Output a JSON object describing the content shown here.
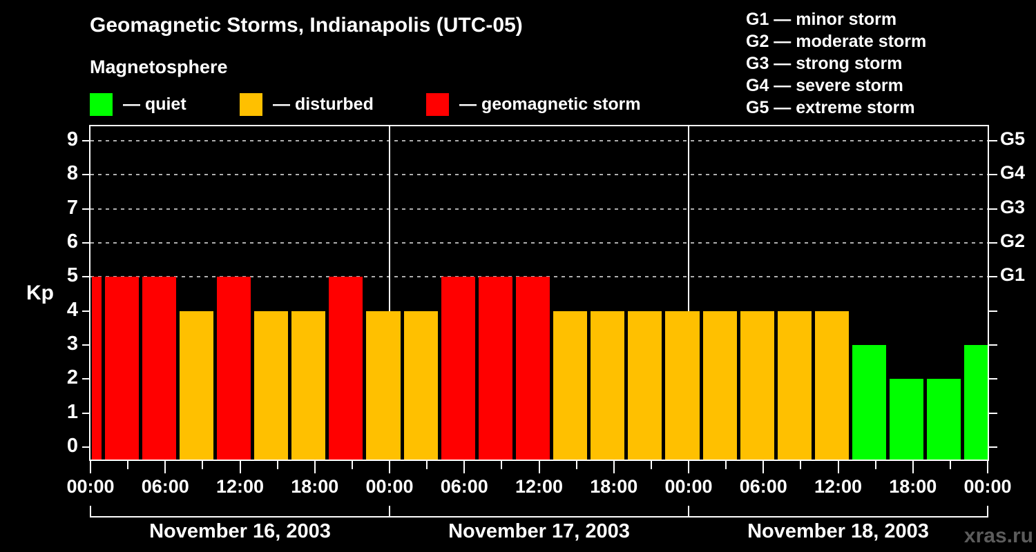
{
  "title": "Geomagnetic Storms, Indianapolis (UTC-05)",
  "subtitle": "Magnetosphere",
  "watermark": "xras.ru",
  "colors": {
    "background": "#000000",
    "axis": "#ffffff",
    "gridline": "#b0b0b0",
    "quiet": "#00ff00",
    "disturbed": "#ffc000",
    "storm": "#ff0000",
    "watermark": "#5c5c5c"
  },
  "legend": {
    "items": [
      {
        "key": "quiet",
        "label": "— quiet",
        "color": "#00ff00"
      },
      {
        "key": "disturbed",
        "label": "— disturbed",
        "color": "#ffc000"
      },
      {
        "key": "storm",
        "label": "— geomagnetic storm",
        "color": "#ff0000"
      }
    ]
  },
  "g_scale_legend": {
    "items": [
      "G1 — minor storm",
      "G2 — moderate storm",
      "G3 — strong storm",
      "G4 — severe storm",
      "G5 — extreme storm"
    ]
  },
  "chart_data": {
    "type": "bar",
    "title": "Geomagnetic Storms, Indianapolis (UTC-05)",
    "subtitle": "Magnetosphere",
    "ylabel": "Kp",
    "ylim": [
      0,
      9
    ],
    "y_ticks": [
      0,
      1,
      2,
      3,
      4,
      5,
      6,
      7,
      8,
      9
    ],
    "gridlines_at": [
      5,
      6,
      7,
      8,
      9
    ],
    "grid": "dashed horizontal at Kp 5-9 only",
    "legend_position": "top",
    "right_axis_labels": [
      {
        "value": 5,
        "label": "G1"
      },
      {
        "value": 6,
        "label": "G2"
      },
      {
        "value": 7,
        "label": "G3"
      },
      {
        "value": 8,
        "label": "G4"
      },
      {
        "value": 9,
        "label": "G5"
      }
    ],
    "x_axis": {
      "hours_total": 72,
      "major_tick_every_hours": 6,
      "minor_tick_every_hours": 3,
      "tick_labels": [
        {
          "hour": 0,
          "label": "00:00"
        },
        {
          "hour": 6,
          "label": "06:00"
        },
        {
          "hour": 12,
          "label": "12:00"
        },
        {
          "hour": 18,
          "label": "18:00"
        },
        {
          "hour": 24,
          "label": "00:00"
        },
        {
          "hour": 30,
          "label": "06:00"
        },
        {
          "hour": 36,
          "label": "12:00"
        },
        {
          "hour": 42,
          "label": "18:00"
        },
        {
          "hour": 48,
          "label": "00:00"
        },
        {
          "hour": 54,
          "label": "06:00"
        },
        {
          "hour": 60,
          "label": "12:00"
        },
        {
          "hour": 66,
          "label": "18:00"
        },
        {
          "hour": 72,
          "label": "00:00"
        }
      ]
    },
    "days": [
      {
        "label": "November 16, 2003",
        "start_hour": 0,
        "end_hour": 24
      },
      {
        "label": "November 17, 2003",
        "start_hour": 24,
        "end_hour": 48
      },
      {
        "label": "November 18, 2003",
        "start_hour": 48,
        "end_hour": 72
      }
    ],
    "bars": [
      {
        "start_hour": 0,
        "end_hour": 1,
        "kp": 5,
        "category": "storm"
      },
      {
        "start_hour": 1,
        "end_hour": 4,
        "kp": 5,
        "category": "storm"
      },
      {
        "start_hour": 4,
        "end_hour": 7,
        "kp": 5,
        "category": "storm"
      },
      {
        "start_hour": 7,
        "end_hour": 10,
        "kp": 4,
        "category": "disturbed"
      },
      {
        "start_hour": 10,
        "end_hour": 13,
        "kp": 5,
        "category": "storm"
      },
      {
        "start_hour": 13,
        "end_hour": 16,
        "kp": 4,
        "category": "disturbed"
      },
      {
        "start_hour": 16,
        "end_hour": 19,
        "kp": 4,
        "category": "disturbed"
      },
      {
        "start_hour": 19,
        "end_hour": 22,
        "kp": 5,
        "category": "storm"
      },
      {
        "start_hour": 22,
        "end_hour": 25,
        "kp": 4,
        "category": "disturbed"
      },
      {
        "start_hour": 25,
        "end_hour": 28,
        "kp": 4,
        "category": "disturbed"
      },
      {
        "start_hour": 28,
        "end_hour": 31,
        "kp": 5,
        "category": "storm"
      },
      {
        "start_hour": 31,
        "end_hour": 34,
        "kp": 5,
        "category": "storm"
      },
      {
        "start_hour": 34,
        "end_hour": 37,
        "kp": 5,
        "category": "storm"
      },
      {
        "start_hour": 37,
        "end_hour": 40,
        "kp": 4,
        "category": "disturbed"
      },
      {
        "start_hour": 40,
        "end_hour": 43,
        "kp": 4,
        "category": "disturbed"
      },
      {
        "start_hour": 43,
        "end_hour": 46,
        "kp": 4,
        "category": "disturbed"
      },
      {
        "start_hour": 46,
        "end_hour": 49,
        "kp": 4,
        "category": "disturbed"
      },
      {
        "start_hour": 49,
        "end_hour": 52,
        "kp": 4,
        "category": "disturbed"
      },
      {
        "start_hour": 52,
        "end_hour": 55,
        "kp": 4,
        "category": "disturbed"
      },
      {
        "start_hour": 55,
        "end_hour": 58,
        "kp": 4,
        "category": "disturbed"
      },
      {
        "start_hour": 58,
        "end_hour": 61,
        "kp": 4,
        "category": "disturbed"
      },
      {
        "start_hour": 61,
        "end_hour": 64,
        "kp": 3,
        "category": "quiet"
      },
      {
        "start_hour": 64,
        "end_hour": 67,
        "kp": 2,
        "category": "quiet"
      },
      {
        "start_hour": 67,
        "end_hour": 70,
        "kp": 2,
        "category": "quiet"
      },
      {
        "start_hour": 70,
        "end_hour": 72,
        "kp": 3,
        "category": "quiet"
      }
    ]
  }
}
